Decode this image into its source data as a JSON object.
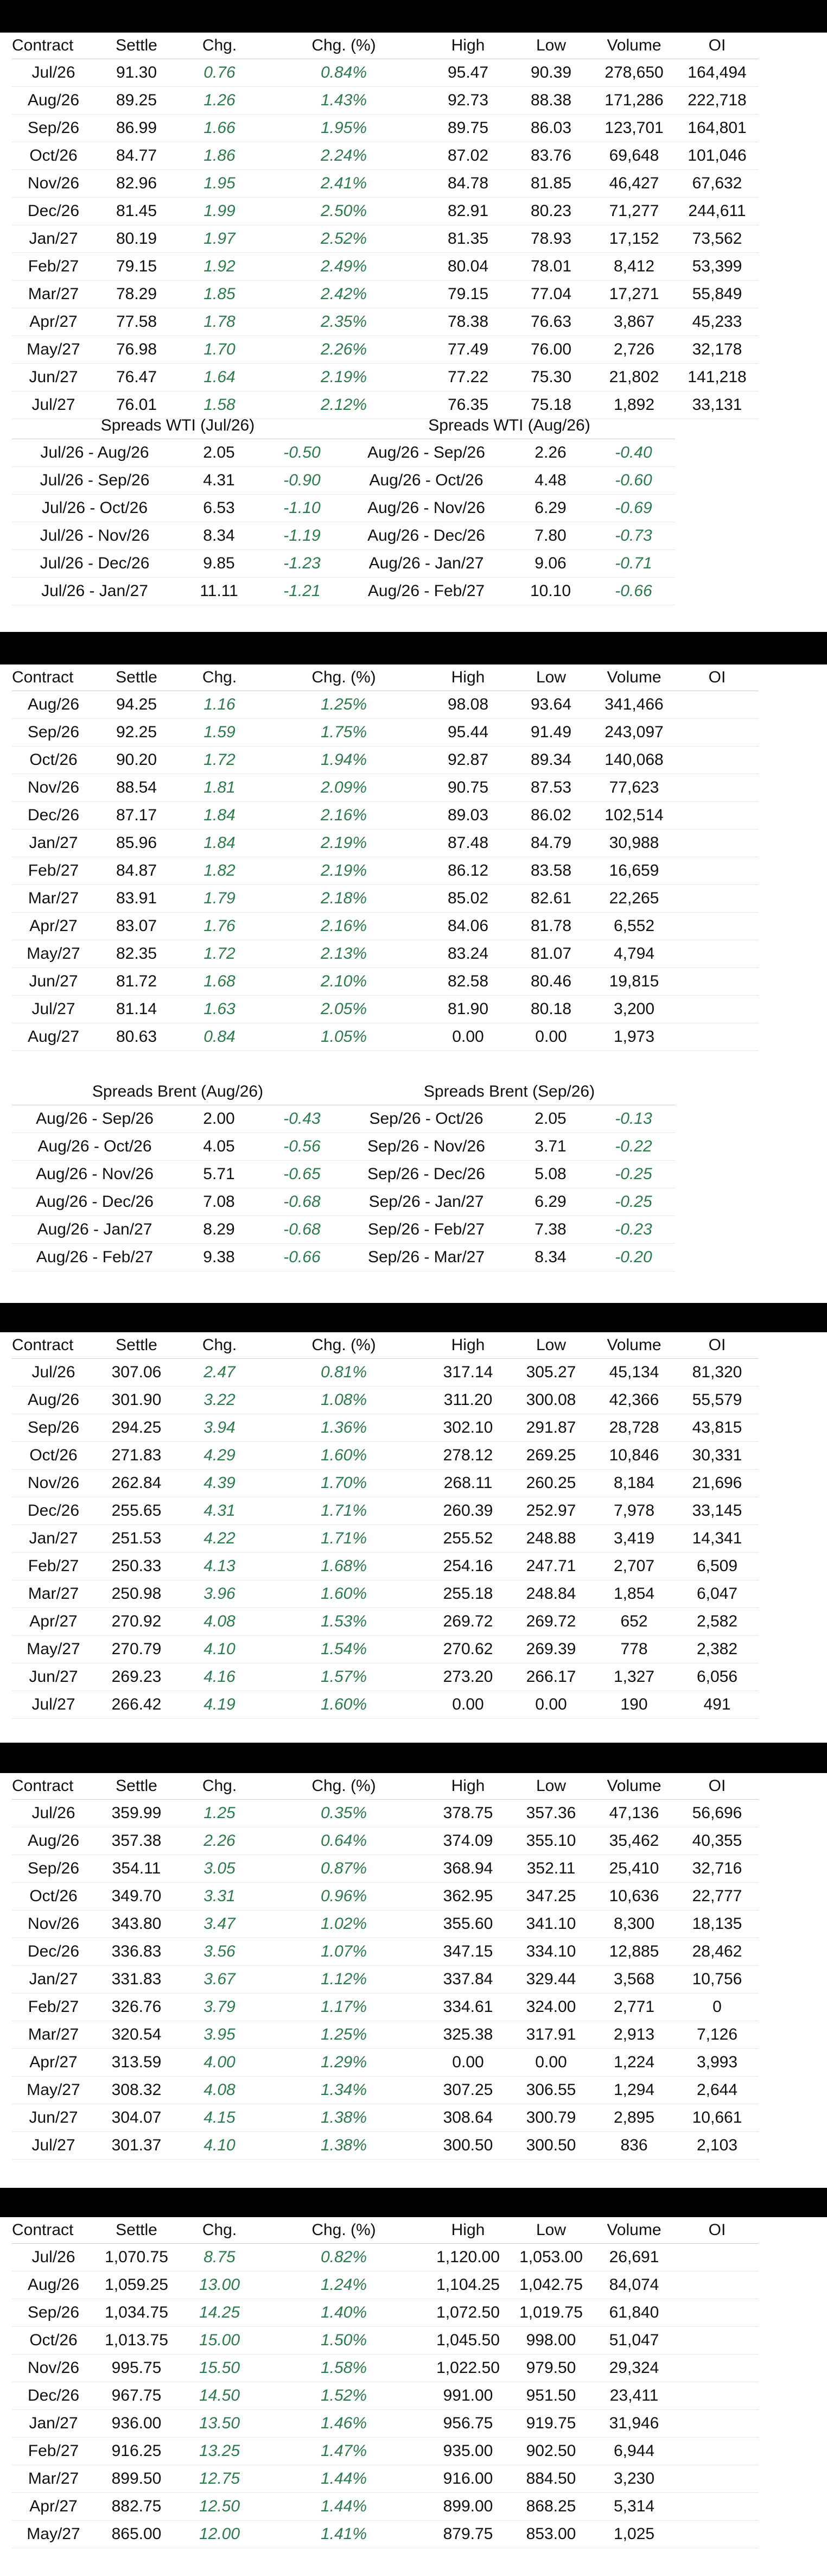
{
  "headers": {
    "contract": "Contract",
    "settle": "Settle",
    "chg": "Chg.",
    "chg_pct": "Chg. (%)",
    "high": "High",
    "low": "Low",
    "volume": "Volume",
    "oi": "OI"
  },
  "wti": [
    [
      "Jul/26",
      "91.30",
      "0.76",
      "0.84%",
      "95.47",
      "90.39",
      "278,650",
      "164,494"
    ],
    [
      "Aug/26",
      "89.25",
      "1.26",
      "1.43%",
      "92.73",
      "88.38",
      "171,286",
      "222,718"
    ],
    [
      "Sep/26",
      "86.99",
      "1.66",
      "1.95%",
      "89.75",
      "86.03",
      "123,701",
      "164,801"
    ],
    [
      "Oct/26",
      "84.77",
      "1.86",
      "2.24%",
      "87.02",
      "83.76",
      "69,648",
      "101,046"
    ],
    [
      "Nov/26",
      "82.96",
      "1.95",
      "2.41%",
      "84.78",
      "81.85",
      "46,427",
      "67,632"
    ],
    [
      "Dec/26",
      "81.45",
      "1.99",
      "2.50%",
      "82.91",
      "80.23",
      "71,277",
      "244,611"
    ],
    [
      "Jan/27",
      "80.19",
      "1.97",
      "2.52%",
      "81.35",
      "78.93",
      "17,152",
      "73,562"
    ],
    [
      "Feb/27",
      "79.15",
      "1.92",
      "2.49%",
      "80.04",
      "78.01",
      "8,412",
      "53,399"
    ],
    [
      "Mar/27",
      "78.29",
      "1.85",
      "2.42%",
      "79.15",
      "77.04",
      "17,271",
      "55,849"
    ],
    [
      "Apr/27",
      "77.58",
      "1.78",
      "2.35%",
      "78.38",
      "76.63",
      "3,867",
      "45,233"
    ],
    [
      "May/27",
      "76.98",
      "1.70",
      "2.26%",
      "77.49",
      "76.00",
      "2,726",
      "32,178"
    ],
    [
      "Jun/27",
      "76.47",
      "1.64",
      "2.19%",
      "77.22",
      "75.30",
      "21,802",
      "141,218"
    ],
    [
      "Jul/27",
      "76.01",
      "1.58",
      "2.12%",
      "76.35",
      "75.18",
      "1,892",
      "33,131"
    ]
  ],
  "wti_spreads": {
    "left_title": "Spreads WTI (Jul/26)",
    "right_title": "Spreads WTI (Aug/26)",
    "rows": [
      [
        "Jul/26 - Aug/26",
        "2.05",
        "-0.50",
        "Aug/26 - Sep/26",
        "2.26",
        "-0.40"
      ],
      [
        "Jul/26 - Sep/26",
        "4.31",
        "-0.90",
        "Aug/26 - Oct/26",
        "4.48",
        "-0.60"
      ],
      [
        "Jul/26 - Oct/26",
        "6.53",
        "-1.10",
        "Aug/26 - Nov/26",
        "6.29",
        "-0.69"
      ],
      [
        "Jul/26 - Nov/26",
        "8.34",
        "-1.19",
        "Aug/26 - Dec/26",
        "7.80",
        "-0.73"
      ],
      [
        "Jul/26 - Dec/26",
        "9.85",
        "-1.23",
        "Aug/26 - Jan/27",
        "9.06",
        "-0.71"
      ],
      [
        "Jul/26 - Jan/27",
        "11.11",
        "-1.21",
        "Aug/26 - Feb/27",
        "10.10",
        "-0.66"
      ]
    ]
  },
  "brent": [
    [
      "Aug/26",
      "94.25",
      "1.16",
      "1.25%",
      "98.08",
      "93.64",
      "341,466",
      ""
    ],
    [
      "Sep/26",
      "92.25",
      "1.59",
      "1.75%",
      "95.44",
      "91.49",
      "243,097",
      ""
    ],
    [
      "Oct/26",
      "90.20",
      "1.72",
      "1.94%",
      "92.87",
      "89.34",
      "140,068",
      ""
    ],
    [
      "Nov/26",
      "88.54",
      "1.81",
      "2.09%",
      "90.75",
      "87.53",
      "77,623",
      ""
    ],
    [
      "Dec/26",
      "87.17",
      "1.84",
      "2.16%",
      "89.03",
      "86.02",
      "102,514",
      ""
    ],
    [
      "Jan/27",
      "85.96",
      "1.84",
      "2.19%",
      "87.48",
      "84.79",
      "30,988",
      ""
    ],
    [
      "Feb/27",
      "84.87",
      "1.82",
      "2.19%",
      "86.12",
      "83.58",
      "16,659",
      ""
    ],
    [
      "Mar/27",
      "83.91",
      "1.79",
      "2.18%",
      "85.02",
      "82.61",
      "22,265",
      ""
    ],
    [
      "Apr/27",
      "83.07",
      "1.76",
      "2.16%",
      "84.06",
      "81.78",
      "6,552",
      ""
    ],
    [
      "May/27",
      "82.35",
      "1.72",
      "2.13%",
      "83.24",
      "81.07",
      "4,794",
      ""
    ],
    [
      "Jun/27",
      "81.72",
      "1.68",
      "2.10%",
      "82.58",
      "80.46",
      "19,815",
      ""
    ],
    [
      "Jul/27",
      "81.14",
      "1.63",
      "2.05%",
      "81.90",
      "80.18",
      "3,200",
      ""
    ],
    [
      "Aug/27",
      "80.63",
      "0.84",
      "1.05%",
      "0.00",
      "0.00",
      "1,973",
      ""
    ]
  ],
  "brent_spreads": {
    "left_title": "Spreads Brent (Aug/26)",
    "right_title": "Spreads Brent (Sep/26)",
    "rows": [
      [
        "Aug/26 - Sep/26",
        "2.00",
        "-0.43",
        "Sep/26 - Oct/26",
        "2.05",
        "-0.13"
      ],
      [
        "Aug/26 - Oct/26",
        "4.05",
        "-0.56",
        "Sep/26 - Nov/26",
        "3.71",
        "-0.22"
      ],
      [
        "Aug/26 - Nov/26",
        "5.71",
        "-0.65",
        "Sep/26 - Dec/26",
        "5.08",
        "-0.25"
      ],
      [
        "Aug/26 - Dec/26",
        "7.08",
        "-0.68",
        "Sep/26 - Jan/27",
        "6.29",
        "-0.25"
      ],
      [
        "Aug/26 - Jan/27",
        "8.29",
        "-0.68",
        "Sep/26 - Feb/27",
        "7.38",
        "-0.23"
      ],
      [
        "Aug/26 - Feb/27",
        "9.38",
        "-0.66",
        "Sep/26 - Mar/27",
        "8.34",
        "-0.20"
      ]
    ]
  },
  "gasoline": [
    [
      "Jul/26",
      "307.06",
      "2.47",
      "0.81%",
      "317.14",
      "305.27",
      "45,134",
      "81,320"
    ],
    [
      "Aug/26",
      "301.90",
      "3.22",
      "1.08%",
      "311.20",
      "300.08",
      "42,366",
      "55,579"
    ],
    [
      "Sep/26",
      "294.25",
      "3.94",
      "1.36%",
      "302.10",
      "291.87",
      "28,728",
      "43,815"
    ],
    [
      "Oct/26",
      "271.83",
      "4.29",
      "1.60%",
      "278.12",
      "269.25",
      "10,846",
      "30,331"
    ],
    [
      "Nov/26",
      "262.84",
      "4.39",
      "1.70%",
      "268.11",
      "260.25",
      "8,184",
      "21,696"
    ],
    [
      "Dec/26",
      "255.65",
      "4.31",
      "1.71%",
      "260.39",
      "252.97",
      "7,978",
      "33,145"
    ],
    [
      "Jan/27",
      "251.53",
      "4.22",
      "1.71%",
      "255.52",
      "248.88",
      "3,419",
      "14,341"
    ],
    [
      "Feb/27",
      "250.33",
      "4.13",
      "1.68%",
      "254.16",
      "247.71",
      "2,707",
      "6,509"
    ],
    [
      "Mar/27",
      "250.98",
      "3.96",
      "1.60%",
      "255.18",
      "248.84",
      "1,854",
      "6,047"
    ],
    [
      "Apr/27",
      "270.92",
      "4.08",
      "1.53%",
      "269.72",
      "269.72",
      "652",
      "2,582"
    ],
    [
      "May/27",
      "270.79",
      "4.10",
      "1.54%",
      "270.62",
      "269.39",
      "778",
      "2,382"
    ],
    [
      "Jun/27",
      "269.23",
      "4.16",
      "1.57%",
      "273.20",
      "266.17",
      "1,327",
      "6,056"
    ],
    [
      "Jul/27",
      "266.42",
      "4.19",
      "1.60%",
      "0.00",
      "0.00",
      "190",
      "491"
    ]
  ],
  "heating": [
    [
      "Jul/26",
      "359.99",
      "1.25",
      "0.35%",
      "378.75",
      "357.36",
      "47,136",
      "56,696"
    ],
    [
      "Aug/26",
      "357.38",
      "2.26",
      "0.64%",
      "374.09",
      "355.10",
      "35,462",
      "40,355"
    ],
    [
      "Sep/26",
      "354.11",
      "3.05",
      "0.87%",
      "368.94",
      "352.11",
      "25,410",
      "32,716"
    ],
    [
      "Oct/26",
      "349.70",
      "3.31",
      "0.96%",
      "362.95",
      "347.25",
      "10,636",
      "22,777"
    ],
    [
      "Nov/26",
      "343.80",
      "3.47",
      "1.02%",
      "355.60",
      "341.10",
      "8,300",
      "18,135"
    ],
    [
      "Dec/26",
      "336.83",
      "3.56",
      "1.07%",
      "347.15",
      "334.10",
      "12,885",
      "28,462"
    ],
    [
      "Jan/27",
      "331.83",
      "3.67",
      "1.12%",
      "337.84",
      "329.44",
      "3,568",
      "10,756"
    ],
    [
      "Feb/27",
      "326.76",
      "3.79",
      "1.17%",
      "334.61",
      "324.00",
      "2,771",
      "0"
    ],
    [
      "Mar/27",
      "320.54",
      "3.95",
      "1.25%",
      "325.38",
      "317.91",
      "2,913",
      "7,126"
    ],
    [
      "Apr/27",
      "313.59",
      "4.00",
      "1.29%",
      "0.00",
      "0.00",
      "1,224",
      "3,993"
    ],
    [
      "May/27",
      "308.32",
      "4.08",
      "1.34%",
      "307.25",
      "306.55",
      "1,294",
      "2,644"
    ],
    [
      "Jun/27",
      "304.07",
      "4.15",
      "1.38%",
      "308.64",
      "300.79",
      "2,895",
      "10,661"
    ],
    [
      "Jul/27",
      "301.37",
      "4.10",
      "1.38%",
      "300.50",
      "300.50",
      "836",
      "2,103"
    ]
  ],
  "gasoil": [
    [
      "Jul/26",
      "1,070.75",
      "8.75",
      "0.82%",
      "1,120.00",
      "1,053.00",
      "26,691",
      ""
    ],
    [
      "Aug/26",
      "1,059.25",
      "13.00",
      "1.24%",
      "1,104.25",
      "1,042.75",
      "84,074",
      ""
    ],
    [
      "Sep/26",
      "1,034.75",
      "14.25",
      "1.40%",
      "1,072.50",
      "1,019.75",
      "61,840",
      ""
    ],
    [
      "Oct/26",
      "1,013.75",
      "15.00",
      "1.50%",
      "1,045.50",
      "998.00",
      "51,047",
      ""
    ],
    [
      "Nov/26",
      "995.75",
      "15.50",
      "1.58%",
      "1,022.50",
      "979.50",
      "29,324",
      ""
    ],
    [
      "Dec/26",
      "967.75",
      "14.50",
      "1.52%",
      "991.00",
      "951.50",
      "23,411",
      ""
    ],
    [
      "Jan/27",
      "936.00",
      "13.50",
      "1.46%",
      "956.75",
      "919.75",
      "31,946",
      ""
    ],
    [
      "Feb/27",
      "916.25",
      "13.25",
      "1.47%",
      "935.00",
      "902.50",
      "6,944",
      ""
    ],
    [
      "Mar/27",
      "899.50",
      "12.75",
      "1.44%",
      "916.00",
      "884.50",
      "3,230",
      ""
    ],
    [
      "Apr/27",
      "882.75",
      "12.50",
      "1.44%",
      "899.00",
      "868.25",
      "5,314",
      ""
    ],
    [
      "May/27",
      "865.00",
      "12.00",
      "1.41%",
      "879.75",
      "853.00",
      "1,025",
      ""
    ]
  ]
}
